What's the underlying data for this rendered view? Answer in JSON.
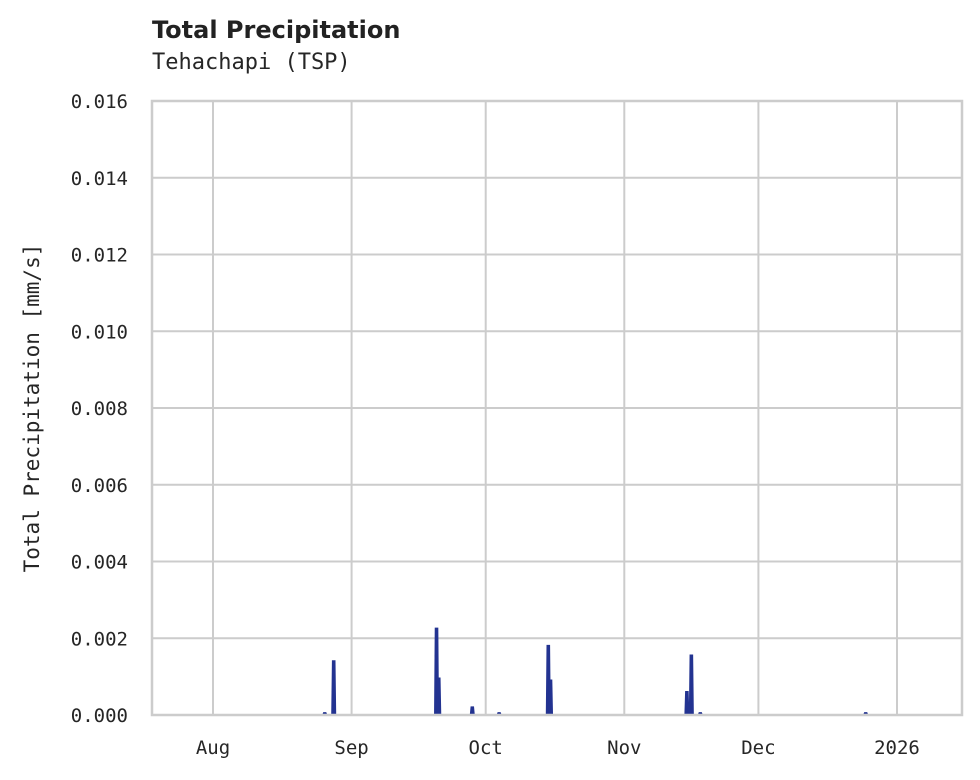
{
  "header": {
    "title": "Total Precipitation",
    "subtitle": "Tehachapi (TSP)"
  },
  "colors": {
    "series": "#233391",
    "grid": "#cccccc",
    "axis": "#cccccc"
  },
  "chart_data": {
    "type": "line",
    "title": "Total Precipitation",
    "subtitle": "Tehachapi (TSP)",
    "xlabel": "",
    "ylabel": "Total Precipitation [mm/s]",
    "ylim": [
      0,
      0.016
    ],
    "yticks": [
      "0.000",
      "0.002",
      "0.004",
      "0.006",
      "0.008",
      "0.010",
      "0.012",
      "0.014",
      "0.016"
    ],
    "xticks": [
      "Aug",
      "Sep",
      "Oct",
      "Nov",
      "Dec",
      "2026"
    ],
    "grid": true,
    "legend": null,
    "series": [
      {
        "name": "Total Precipitation",
        "points": [
          {
            "x": "2025-08-26",
            "y": 5e-05
          },
          {
            "x": "2025-08-28",
            "y": 0.0014
          },
          {
            "x": "2025-09-20",
            "y": 0.00225
          },
          {
            "x": "2025-09-20T12",
            "y": 0.00095
          },
          {
            "x": "2025-09-28",
            "y": 0.0002
          },
          {
            "x": "2025-10-04",
            "y": 5e-05
          },
          {
            "x": "2025-10-15",
            "y": 0.0018
          },
          {
            "x": "2025-10-15T12",
            "y": 0.0009
          },
          {
            "x": "2025-11-15",
            "y": 0.0006
          },
          {
            "x": "2025-11-16",
            "y": 0.00155
          },
          {
            "x": "2025-11-18",
            "y": 5e-05
          },
          {
            "x": "2025-12-25",
            "y": 5e-05
          }
        ]
      }
    ]
  }
}
